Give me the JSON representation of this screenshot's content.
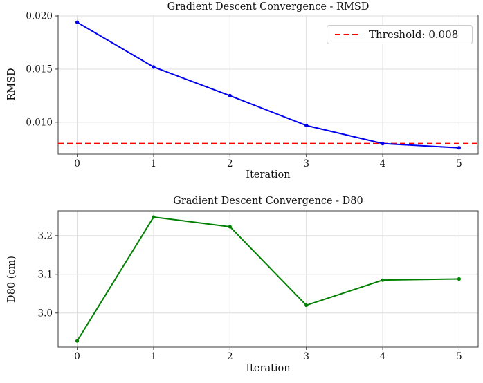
{
  "chart_data": [
    {
      "type": "line",
      "title": "Gradient Descent Convergence - RMSD",
      "xlabel": "Iteration",
      "ylabel": "RMSD",
      "x": [
        0,
        1,
        2,
        3,
        4,
        5
      ],
      "series": [
        {
          "name": "RMSD",
          "color": "#0000ee",
          "marker": "circle",
          "values": [
            0.0194,
            0.0152,
            0.0125,
            0.0097,
            0.008,
            0.0076
          ]
        }
      ],
      "threshold": {
        "value": 0.008,
        "color": "#ff0000",
        "style": "dashed"
      },
      "legend": {
        "position": "upper right",
        "entries": [
          {
            "label": "Threshold: 0.008",
            "color": "#ff0000",
            "style": "dashed"
          }
        ]
      },
      "xlim": [
        -0.25,
        5.25
      ],
      "ylim": [
        0.007,
        0.0201
      ],
      "xticks": {
        "values": [
          0,
          1,
          2,
          3,
          4,
          5
        ],
        "labels": [
          "0",
          "1",
          "2",
          "3",
          "4",
          "5"
        ]
      },
      "yticks": {
        "values": [
          0.01,
          0.015,
          0.02
        ],
        "labels": [
          "0.010",
          "0.015",
          "0.020"
        ]
      },
      "grid": true
    },
    {
      "type": "line",
      "title": "Gradient Descent Convergence - D80",
      "xlabel": "Iteration",
      "ylabel": "D80 (cm)",
      "x": [
        0,
        1,
        2,
        3,
        4,
        5
      ],
      "series": [
        {
          "name": "D80",
          "color": "#008000",
          "marker": "circle",
          "values": [
            2.928,
            3.248,
            3.223,
            3.02,
            3.085,
            3.088
          ]
        }
      ],
      "xlim": [
        -0.25,
        5.25
      ],
      "ylim": [
        2.912,
        3.264
      ],
      "xticks": {
        "values": [
          0,
          1,
          2,
          3,
          4,
          5
        ],
        "labels": [
          "0",
          "1",
          "2",
          "3",
          "4",
          "5"
        ]
      },
      "yticks": {
        "values": [
          3.0,
          3.1,
          3.2
        ],
        "labels": [
          "3.0",
          "3.1",
          "3.2"
        ]
      },
      "grid": true
    }
  ],
  "style": {
    "grid_color": "#dcdcdc",
    "spine_color": "#3a3a3a",
    "tick_color": "#444444"
  }
}
